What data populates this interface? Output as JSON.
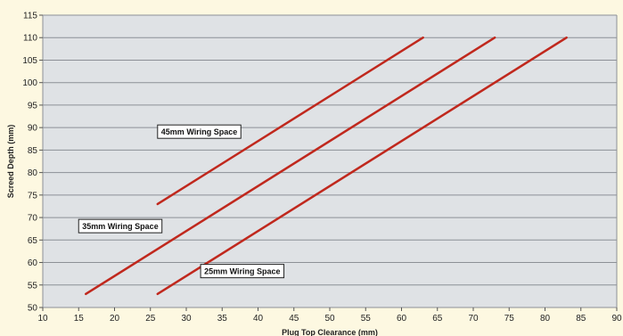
{
  "chart_data": {
    "type": "line",
    "title": "",
    "xlabel": "Plug Top Clearance (mm)",
    "ylabel": "Screed Depth (mm)",
    "xlim": [
      10,
      90
    ],
    "ylim": [
      50,
      115
    ],
    "xticks": [
      10,
      15,
      20,
      25,
      30,
      35,
      40,
      45,
      50,
      55,
      60,
      65,
      70,
      75,
      80,
      85,
      90
    ],
    "yticks": [
      50,
      55,
      60,
      65,
      70,
      75,
      80,
      85,
      90,
      95,
      100,
      105,
      110,
      115
    ],
    "grid": "horizontal",
    "legend": "none",
    "series": [
      {
        "x": [
          26,
          63
        ],
        "y": [
          73,
          110
        ]
      },
      {
        "x": [
          16,
          73
        ],
        "y": [
          53,
          110
        ]
      },
      {
        "x": [
          26,
          83
        ],
        "y": [
          53,
          110
        ]
      }
    ],
    "annotations": [
      {
        "text": "45mm Wiring Space",
        "x": 26,
        "y": 89
      },
      {
        "text": "35mm Wiring Space",
        "x": 15,
        "y": 68
      },
      {
        "text": "25mm Wiring Space",
        "x": 32,
        "y": 58
      }
    ],
    "colors": {
      "line": "#c0281d",
      "plot_bg": "#dfe2e5",
      "gridline": "#8c9096",
      "page_bg": "#fdf8e1"
    }
  }
}
